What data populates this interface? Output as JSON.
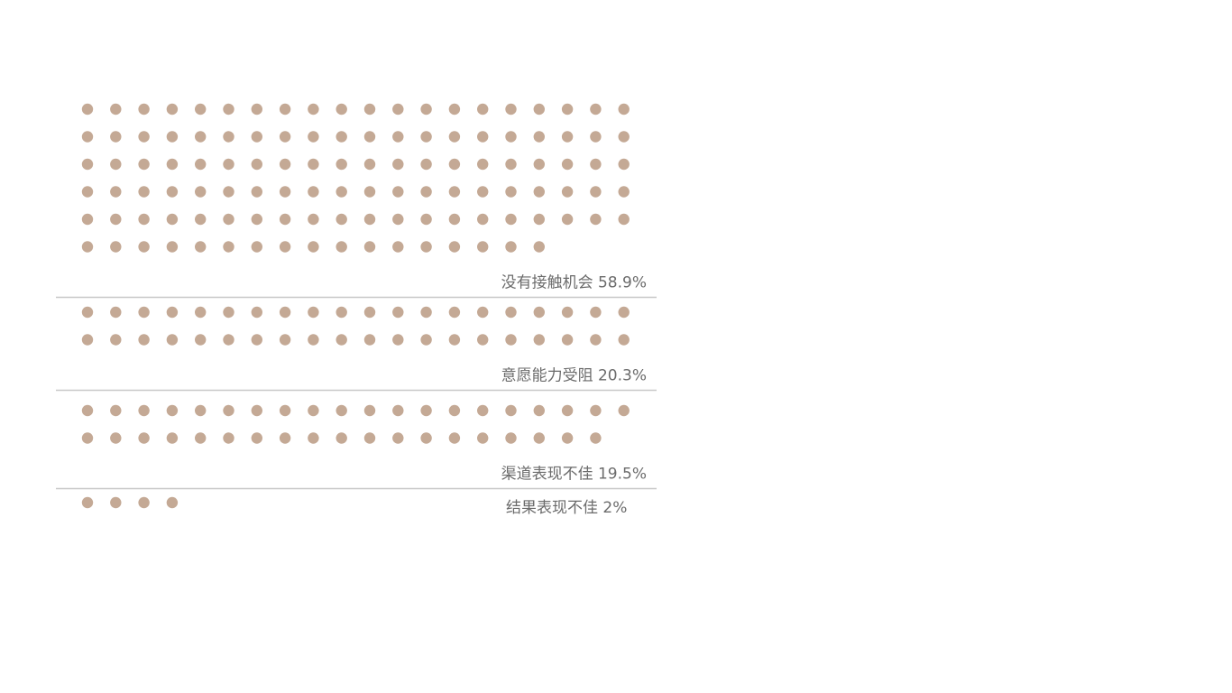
{
  "colors": {
    "dot": "#c4a995",
    "divider": "#c8c8c8",
    "label": "#6b6b6b",
    "background": "#ffffff"
  },
  "chart_data": {
    "type": "pictogram",
    "unit": "dot",
    "categories": [
      {
        "name": "没有接触机会",
        "value": 58.9,
        "value_label": "58.9%",
        "dots": 117
      },
      {
        "name": "意愿能力受阻",
        "value": 20.3,
        "value_label": "20.3%",
        "dots": 40
      },
      {
        "name": "渠道表现不佳",
        "value": 19.5,
        "value_label": "19.5%",
        "dots": 39
      },
      {
        "name": "结果表现不佳",
        "value": 2,
        "value_label": "2%",
        "dots": 4
      }
    ]
  }
}
